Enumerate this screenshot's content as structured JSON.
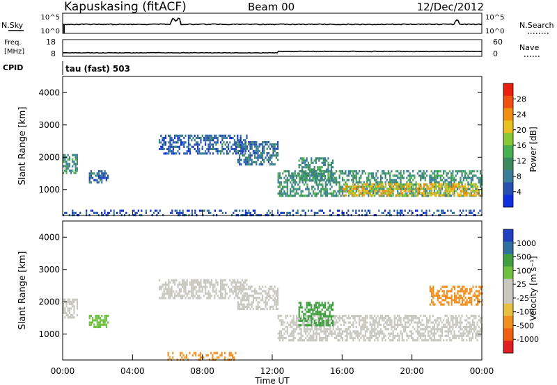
{
  "header": {
    "station": "Kapuskasing (fitACF)",
    "beam": "Beam 00",
    "date": "12/Dec/2012"
  },
  "top_panels": {
    "nsky_label": "N.Sky",
    "nsky_ticks": [
      "10^5",
      "10^0"
    ],
    "nsearch_label": "N.Search",
    "nsearch_ticks": [
      "10^5",
      "10^0"
    ],
    "freq_label": "Freq.",
    "freq_unit": "[MHz]",
    "freq_ticks": [
      "18",
      "8"
    ],
    "nave_label": "Nave",
    "nave_ticks": [
      "60",
      "0"
    ],
    "cpid_label": "CPID",
    "cpid_value": "tau (fast) 503"
  },
  "colors": {
    "power_scale": [
      "#1030e0",
      "#2850b0",
      "#3a7e9a",
      "#3e8a60",
      "#48b050",
      "#88c838",
      "#e8c020",
      "#f09010",
      "#f05010",
      "#e82010"
    ],
    "velocity_scale": [
      "#e02020",
      "#f06010",
      "#f09020",
      "#e8c040",
      "#c8c8c0",
      "#c8c8c0",
      "#70c040",
      "#40a040",
      "#3070a0",
      "#2040c0"
    ],
    "velocity_ground": "#c8c8c0"
  },
  "chart_data": [
    {
      "type": "heatmap",
      "panel": "power",
      "ylabel": "Slant Range [km]",
      "yticks": [
        "1000",
        "2000",
        "3000",
        "4000"
      ],
      "ylim": [
        200,
        4500
      ],
      "xlim": [
        0,
        24
      ],
      "colorbar_label": "Power [dB]",
      "colorbar_ticks": [
        "4",
        "8",
        "12",
        "16",
        "20",
        "24",
        "28"
      ],
      "colorbar_range": [
        0,
        30
      ],
      "features": [
        {
          "t0": 0.0,
          "t1": 0.8,
          "r0": 1500,
          "r1": 2100,
          "value": 10
        },
        {
          "t0": 1.5,
          "t1": 2.6,
          "r0": 1200,
          "r1": 1600,
          "value": 6
        },
        {
          "t0": 5.5,
          "t1": 10.5,
          "r0": 2100,
          "r1": 2700,
          "value": 6
        },
        {
          "t0": 10.0,
          "t1": 12.3,
          "r0": 1800,
          "r1": 2500,
          "value": 7
        },
        {
          "t0": 12.3,
          "t1": 24.0,
          "r0": 800,
          "r1": 1600,
          "value": 10
        },
        {
          "t0": 13.5,
          "t1": 15.5,
          "r0": 1300,
          "r1": 2000,
          "value": 10
        },
        {
          "t0": 16.0,
          "t1": 24.0,
          "r0": 850,
          "r1": 1200,
          "value": 20
        },
        {
          "t0": 0.0,
          "t1": 24.0,
          "r0": 200,
          "r1": 380,
          "value": 5
        }
      ]
    },
    {
      "type": "heatmap",
      "panel": "velocity",
      "ylabel": "Slant Range [km]",
      "yticks": [
        "1000",
        "2000",
        "3000",
        "4000"
      ],
      "ylim": [
        200,
        4500
      ],
      "xlim": [
        0,
        24
      ],
      "xlabel": "Time UT",
      "xticks": [
        "00:00",
        "04:00",
        "08:00",
        "12:00",
        "16:00",
        "20:00",
        "00:00"
      ],
      "colorbar_label": "Velocity [m s⁻¹]",
      "colorbar_ticks": [
        "1000",
        "500",
        "100",
        "25",
        "-25",
        "-100",
        "-500",
        "-1000"
      ],
      "features": [
        {
          "t0": 0.0,
          "t1": 0.8,
          "r0": 1500,
          "r1": 2100,
          "value": 0
        },
        {
          "t0": 1.5,
          "t1": 2.6,
          "r0": 1200,
          "r1": 1600,
          "value": 80
        },
        {
          "t0": 5.5,
          "t1": 10.5,
          "r0": 2100,
          "r1": 2700,
          "value": 0
        },
        {
          "t0": 10.0,
          "t1": 12.3,
          "r0": 1800,
          "r1": 2500,
          "value": 0
        },
        {
          "t0": 12.3,
          "t1": 24.0,
          "r0": 800,
          "r1": 1600,
          "value": 0
        },
        {
          "t0": 13.5,
          "t1": 15.5,
          "r0": 1300,
          "r1": 2000,
          "value": 150
        },
        {
          "t0": 21.0,
          "t1": 24.0,
          "r0": 1900,
          "r1": 2500,
          "value": -200
        },
        {
          "t0": 6.0,
          "t1": 10.0,
          "r0": 200,
          "r1": 450,
          "value": -120
        }
      ]
    }
  ]
}
